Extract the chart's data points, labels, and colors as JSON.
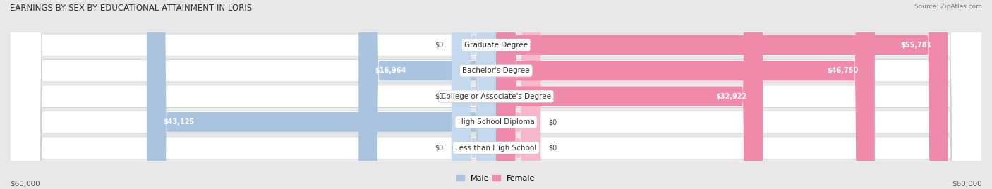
{
  "title": "EARNINGS BY SEX BY EDUCATIONAL ATTAINMENT IN LORIS",
  "source": "Source: ZipAtlas.com",
  "categories": [
    "Less than High School",
    "High School Diploma",
    "College or Associate's Degree",
    "Bachelor's Degree",
    "Graduate Degree"
  ],
  "male_values": [
    0,
    43125,
    0,
    16964,
    0
  ],
  "female_values": [
    0,
    0,
    32922,
    46750,
    55781
  ],
  "male_labels": [
    "$0",
    "$43,125",
    "$0",
    "$16,964",
    "$0"
  ],
  "female_labels": [
    "$0",
    "$0",
    "$32,922",
    "$46,750",
    "$55,781"
  ],
  "male_color": "#aac4e0",
  "female_color": "#f08aab",
  "stub_male_color": "#c5d9ee",
  "stub_female_color": "#f7b8cc",
  "max_value": 60000,
  "x_label_left": "$60,000",
  "x_label_right": "$60,000",
  "background_color": "#e8e8e8",
  "row_bg_color": "#ffffff",
  "title_fontsize": 8.5,
  "bar_label_fontsize": 7.5,
  "legend_male": "Male",
  "legend_female": "Female"
}
